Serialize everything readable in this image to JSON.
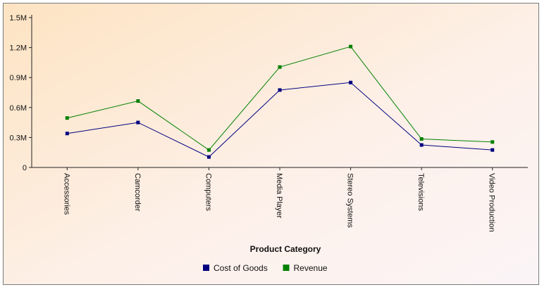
{
  "chart_data": {
    "type": "line",
    "title": "",
    "xlabel": "Product Category",
    "ylabel": "",
    "categories": [
      "Accessories",
      "Camcorder",
      "Computers",
      "Media Player",
      "Stereo Systems",
      "Televisions",
      "Video Production"
    ],
    "series": [
      {
        "name": "Cost of Goods",
        "color": "#000080",
        "values": [
          340000,
          450000,
          105000,
          775000,
          850000,
          225000,
          175000
        ]
      },
      {
        "name": "Revenue",
        "color": "#008000",
        "values": [
          495000,
          665000,
          175000,
          1005000,
          1210000,
          285000,
          255000
        ]
      }
    ],
    "ylim": [
      0,
      1500000
    ],
    "yticks": [
      {
        "value": 0,
        "label": "0"
      },
      {
        "value": 300000,
        "label": "0.3M"
      },
      {
        "value": 600000,
        "label": "0.6M"
      },
      {
        "value": 900000,
        "label": "0.9M"
      },
      {
        "value": 1200000,
        "label": "1.2M"
      },
      {
        "value": 1500000,
        "label": "1.5M"
      }
    ],
    "grid": false,
    "legend_position": "bottom-center",
    "background": "gradient-peach"
  }
}
